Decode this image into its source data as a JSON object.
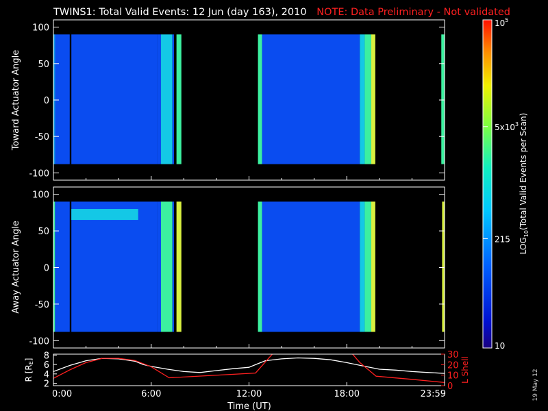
{
  "header": {
    "title": "TWINS1: Total Valid Events: 12 Jun (day 163), 2010",
    "note": "NOTE: Data Preliminary - Not validated",
    "title_color": "#ffffff",
    "note_color": "#ff2020"
  },
  "side_date": "19 May 12",
  "colorbar": {
    "label_prefix": "LOG",
    "label_sub": "10",
    "label_suffix": "(Total Valid Events per Scan)",
    "ticks": [
      {
        "text": "10",
        "value": 10
      },
      {
        "text": "215",
        "value": 215
      },
      {
        "text": "5x10",
        "sup": "3",
        "value": 5000
      },
      {
        "text": "10",
        "sup": "5",
        "value": 100000
      }
    ],
    "range": [
      10,
      100000
    ],
    "scale": "log"
  },
  "chart_data": [
    {
      "type": "heatmap",
      "panel": "toward",
      "ylabel": "Toward Actuator Angle",
      "ylim": [
        -110,
        110
      ],
      "yticks": [
        100,
        50,
        0,
        -50,
        -100
      ],
      "xlim": [
        0,
        24
      ],
      "angle_range": [
        -88,
        90
      ],
      "bands": [
        {
          "start": 0.0,
          "end": 0.04,
          "level": "cyan"
        },
        {
          "start": 0.04,
          "end": 0.06,
          "level": "blue"
        },
        {
          "start": 0.06,
          "end": 0.1,
          "level": "cyan"
        },
        {
          "start": 0.1,
          "end": 1.0,
          "level": "blue"
        },
        {
          "start": 1.1,
          "end": 6.35,
          "level": "blue"
        },
        {
          "start": 6.35,
          "end": 6.6,
          "level": "blue"
        },
        {
          "start": 6.6,
          "end": 7.3,
          "level": "cyan"
        },
        {
          "start": 7.3,
          "end": 7.4,
          "level": "blue"
        },
        {
          "start": 7.55,
          "end": 7.85,
          "level": "green"
        },
        {
          "start": 12.55,
          "end": 12.8,
          "level": "green"
        },
        {
          "start": 12.8,
          "end": 18.8,
          "level": "blue"
        },
        {
          "start": 18.8,
          "end": 19.1,
          "level": "cyan"
        },
        {
          "start": 19.1,
          "end": 19.5,
          "level": "green"
        },
        {
          "start": 19.5,
          "end": 19.75,
          "level": "yellow"
        },
        {
          "start": 23.8,
          "end": 24.0,
          "level": "green"
        }
      ]
    },
    {
      "type": "heatmap",
      "panel": "away",
      "ylabel": "Away Actuator Angle",
      "ylim": [
        -110,
        110
      ],
      "yticks": [
        100,
        50,
        0,
        -50,
        -100
      ],
      "xlim": [
        0,
        24
      ],
      "angle_range": [
        -88,
        90
      ],
      "bands": [
        {
          "start": 0.0,
          "end": 0.1,
          "level": "green"
        },
        {
          "start": 0.1,
          "end": 1.0,
          "level": "blue"
        },
        {
          "start": 1.1,
          "end": 6.35,
          "level": "blue"
        },
        {
          "start": 6.35,
          "end": 6.6,
          "level": "blue"
        },
        {
          "start": 6.6,
          "end": 7.3,
          "level": "green"
        },
        {
          "start": 7.3,
          "end": 7.4,
          "level": "blue"
        },
        {
          "start": 7.55,
          "end": 7.85,
          "level": "yellow"
        },
        {
          "start": 12.55,
          "end": 12.8,
          "level": "green"
        },
        {
          "start": 12.8,
          "end": 18.8,
          "level": "blue"
        },
        {
          "start": 18.8,
          "end": 19.1,
          "level": "cyan"
        },
        {
          "start": 19.1,
          "end": 19.5,
          "level": "green"
        },
        {
          "start": 19.5,
          "end": 19.75,
          "level": "yellow"
        },
        {
          "start": 23.85,
          "end": 24.0,
          "level": "yellow"
        }
      ],
      "feature": {
        "start": 1.1,
        "end": 5.2,
        "angle_min": 65,
        "angle_max": 80,
        "level": "cyan"
      }
    },
    {
      "type": "line",
      "panel": "orbit",
      "ylabel_left": "R [R",
      "ylabel_left_sub": "E",
      "ylabel_left_suffix": "]",
      "ylabel_right": "L Shell",
      "ylim_left": [
        1.5,
        8.2
      ],
      "yticks_left": [
        2,
        4,
        6,
        8
      ],
      "ylim_right": [
        0,
        30
      ],
      "yticks_right": [
        0,
        10,
        20,
        30
      ],
      "xlabel": "Time (UT)",
      "xlim": [
        0,
        24
      ],
      "xticks": [
        {
          "value": 0,
          "label": "0:00"
        },
        {
          "value": 6,
          "label": "6:00"
        },
        {
          "value": 12,
          "label": "12:00"
        },
        {
          "value": 18,
          "label": "18:00"
        },
        {
          "value": 24,
          "label": "23:59"
        }
      ],
      "series": [
        {
          "color": "#ffffff",
          "axis": "left",
          "x": [
            0,
            1,
            2,
            3,
            4,
            5,
            5.5,
            6,
            7,
            8,
            9,
            10,
            11,
            12,
            12.5,
            13,
            14,
            15,
            16,
            17,
            18,
            19,
            20,
            21,
            22,
            23,
            24
          ],
          "y": [
            4.5,
            5.8,
            6.8,
            7.3,
            7.2,
            6.7,
            6.0,
            5.6,
            5.0,
            4.5,
            4.3,
            4.7,
            5.1,
            5.4,
            6.1,
            6.8,
            7.2,
            7.4,
            7.3,
            7.0,
            6.4,
            5.7,
            5.0,
            4.8,
            4.5,
            4.3,
            4.1
          ]
        },
        {
          "color": "#ff2020",
          "axis": "right",
          "x": [
            0,
            1,
            2,
            3,
            4,
            5,
            6,
            7.1,
            12.4,
            14.0,
            17.8,
            18.8,
            19.8,
            22,
            24
          ],
          "y": [
            7,
            15,
            22,
            26,
            26,
            24,
            18,
            7.5,
            12,
            40,
            40,
            22,
            9,
            6,
            3
          ]
        }
      ]
    }
  ]
}
